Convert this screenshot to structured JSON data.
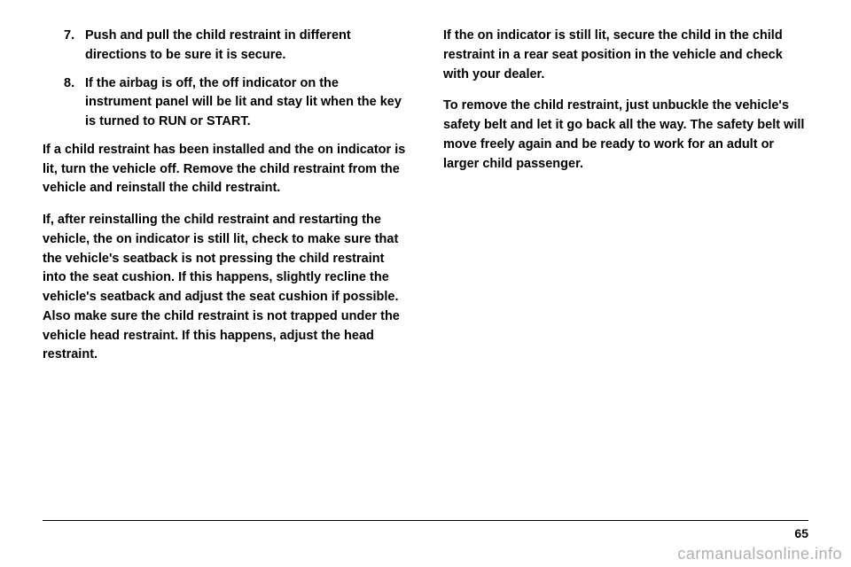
{
  "left_column": {
    "items": [
      {
        "number": "7.",
        "text": "Push and pull the child restraint in different directions to be sure it is secure."
      },
      {
        "number": "8.",
        "text": "If the airbag is off, the off indicator on the instrument panel will be lit and stay lit when the key is turned to RUN or START."
      }
    ],
    "paragraphs": [
      "If a child restraint has been installed and the on indicator is lit, turn the vehicle off. Remove the child restraint from the vehicle and reinstall the child restraint.",
      "If, after reinstalling the child restraint and restarting the vehicle, the on indicator is still lit, check to make sure that the vehicle's seatback is not pressing the child restraint into the seat cushion. If this happens, slightly recline the vehicle's seatback and adjust the seat cushion if possible. Also make sure the child restraint is not trapped under the vehicle head restraint. If this happens, adjust the head restraint."
    ]
  },
  "right_column": {
    "paragraphs": [
      "If the on indicator is still lit, secure the child in the child restraint in a rear seat position in the vehicle and check with your dealer.",
      "To remove the child restraint, just unbuckle the vehicle's safety belt and let it go back all the way. The safety belt will move freely again and be ready to work for an adult or larger child passenger."
    ]
  },
  "page_number": "65",
  "watermark": "carmanualsonline.info"
}
